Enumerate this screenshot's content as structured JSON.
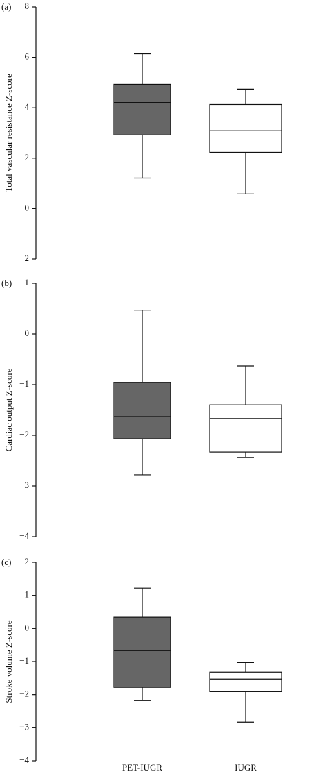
{
  "chart_data": [
    {
      "type": "box",
      "panel_label": "(a)",
      "ylabel": "Total vascular resistance Z-score",
      "ylim": [
        -2,
        8
      ],
      "yticks": [
        {
          "value": -2,
          "label": "−2"
        },
        0,
        2,
        4,
        6,
        8
      ],
      "colors": [
        "#666666",
        "#ffffff"
      ],
      "min": [
        1.21,
        0.58
      ],
      "q1": [
        2.92,
        2.23
      ],
      "median": [
        4.21,
        3.09
      ],
      "q3": [
        4.93,
        4.13
      ],
      "max": [
        6.14,
        4.74
      ]
    },
    {
      "type": "box",
      "panel_label": "(b)",
      "ylabel": "Cardiac output Z-score",
      "ylim": [
        -4,
        1
      ],
      "yticks": [
        {
          "value": -4,
          "label": "−4"
        },
        {
          "value": -3,
          "label": "−3"
        },
        {
          "value": -2,
          "label": "−2"
        },
        {
          "value": -1,
          "label": "−1"
        },
        0,
        1
      ],
      "colors": [
        "#666666",
        "#ffffff"
      ],
      "min": [
        -2.78,
        -2.44
      ],
      "q1": [
        -2.07,
        -2.33
      ],
      "median": [
        -1.63,
        -1.67
      ],
      "q3": [
        -0.96,
        -1.4
      ],
      "max": [
        0.47,
        -0.63
      ]
    },
    {
      "type": "box",
      "panel_label": "(c)",
      "ylabel": "Stroke volume Z-score",
      "ylim": [
        -4,
        2
      ],
      "yticks": [
        {
          "value": -4,
          "label": "−4"
        },
        {
          "value": -3,
          "label": "−3"
        },
        {
          "value": -2,
          "label": "−2"
        },
        {
          "value": -1,
          "label": "−1"
        },
        0,
        1,
        2
      ],
      "colors": [
        "#666666",
        "#ffffff"
      ],
      "categories": [
        "PET-IUGR",
        "IUGR"
      ],
      "min": [
        -2.18,
        -2.83
      ],
      "q1": [
        -1.78,
        -1.91
      ],
      "median": [
        -0.67,
        -1.53
      ],
      "q3": [
        0.34,
        -1.32
      ],
      "max": [
        1.22,
        -1.03
      ]
    }
  ]
}
